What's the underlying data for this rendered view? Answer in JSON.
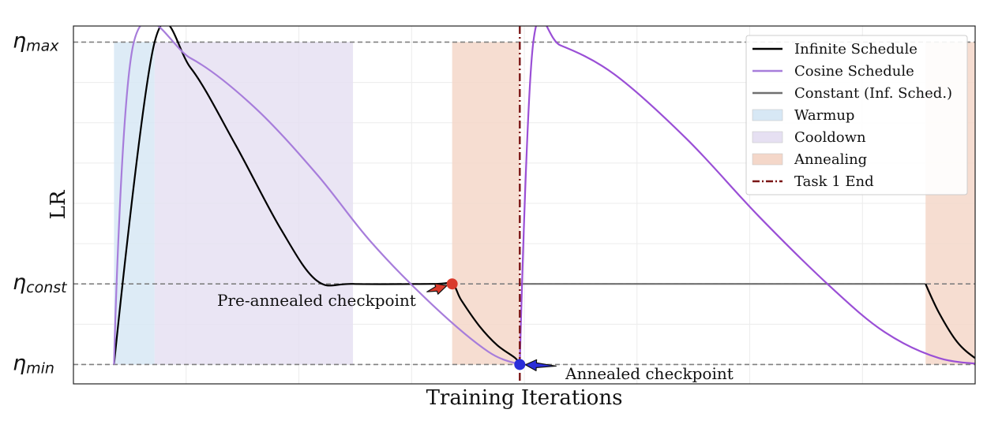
{
  "chart_data": {
    "type": "line",
    "xlabel": "Training Iterations",
    "ylabel": "LR",
    "xlim": [
      0,
      1000
    ],
    "ylim": [
      -0.06,
      1.05
    ],
    "grid": true,
    "legend_position": "top-right",
    "yticks": [
      {
        "value": 1.0,
        "base": "η",
        "sub": "max"
      },
      {
        "value": 0.25,
        "base": "η",
        "sub": "const"
      },
      {
        "value": 0.0,
        "base": "η",
        "sub": "min"
      }
    ],
    "series": [
      {
        "name": "Infinite Schedule",
        "color": "#000000",
        "style": "solid",
        "points": [
          [
            45,
            0
          ],
          [
            90,
            1
          ],
          [
            130,
            0.92
          ],
          [
            180,
            0.68
          ],
          [
            230,
            0.42
          ],
          [
            270,
            0.26
          ],
          [
            310,
            0.25
          ],
          [
            400,
            0.25
          ],
          [
            420,
            0.25
          ],
          [
            430,
            0.2
          ],
          [
            450,
            0.12
          ],
          [
            470,
            0.06
          ],
          [
            490,
            0.02
          ],
          [
            495,
            0
          ]
        ]
      },
      {
        "name": "Cosine Schedule",
        "color": "#a77ddb",
        "style": "solid",
        "points": [
          [
            45,
            0
          ],
          [
            67,
            1
          ],
          [
            130,
            0.95
          ],
          [
            200,
            0.8
          ],
          [
            270,
            0.59
          ],
          [
            330,
            0.38
          ],
          [
            400,
            0.18
          ],
          [
            460,
            0.04
          ],
          [
            495,
            0
          ]
        ]
      },
      {
        "name": "Constant (Inf. Sched.)",
        "color": "#707070",
        "style": "solid",
        "points": [
          [
            495,
            0.25
          ],
          [
            945,
            0.25
          ]
        ]
      },
      {
        "name": "Infinite Schedule",
        "color": "#000000",
        "style": "solid",
        "points": [
          [
            945,
            0.25
          ],
          [
            960,
            0.16
          ],
          [
            980,
            0.07
          ],
          [
            1000,
            0.02
          ],
          [
            1015,
            0
          ]
        ]
      },
      {
        "name": "Cosine Schedule",
        "color": "#9a4fd6",
        "style": "solid",
        "points": [
          [
            495,
            0
          ],
          [
            510,
            1
          ],
          [
            540,
            0.99
          ],
          [
            600,
            0.9
          ],
          [
            680,
            0.7
          ],
          [
            760,
            0.46
          ],
          [
            840,
            0.24
          ],
          [
            900,
            0.1
          ],
          [
            960,
            0.02
          ],
          [
            1015,
            0
          ]
        ]
      }
    ],
    "shaded_regions": [
      {
        "name": "Warmup",
        "color": "#d7e8f5",
        "x": [
          45,
          90
        ],
        "y": [
          0,
          1
        ]
      },
      {
        "name": "Cooldown",
        "color": "#e6e0f2",
        "x": [
          90,
          310
        ],
        "y": [
          0,
          1
        ]
      },
      {
        "name": "Annealing",
        "color": "#f4d7c9",
        "x": [
          420,
          495
        ],
        "y": [
          0,
          1
        ]
      },
      {
        "name": "Annealing",
        "color": "#f4d7c9",
        "x": [
          945,
          1015
        ],
        "y": [
          0,
          1
        ]
      }
    ],
    "hlines": [
      {
        "y": 1.0,
        "style": "dashed",
        "color": "#808080"
      },
      {
        "y": 0.25,
        "style": "dashed",
        "color": "#808080"
      },
      {
        "y": 0.0,
        "style": "dashed",
        "color": "#808080"
      }
    ],
    "vlines": [
      {
        "name": "Task 1 End",
        "x": 495,
        "color": "#7a1515",
        "style": "dashdot"
      }
    ],
    "markers": [
      {
        "name": "Pre-annealed checkpoint",
        "x": 420,
        "y": 0.25,
        "color": "#d93a2b",
        "arrow_color": "#d93a2b"
      },
      {
        "name": "Annealed checkpoint",
        "x": 495,
        "y": 0.0,
        "color": "#2b2ed9",
        "arrow_color": "#2b2ed9"
      }
    ],
    "annotations": [
      {
        "text": "Pre-annealed checkpoint",
        "target": "Pre-annealed checkpoint"
      },
      {
        "text": "Annealed checkpoint",
        "target": "Annealed checkpoint"
      }
    ],
    "legend": [
      {
        "label": "Infinite Schedule",
        "kind": "line",
        "color": "#000000"
      },
      {
        "label": "Cosine Schedule",
        "kind": "line",
        "color": "#a77ddb"
      },
      {
        "label": "Constant (Inf. Sched.)",
        "kind": "line",
        "color": "#707070"
      },
      {
        "label": "Warmup",
        "kind": "patch",
        "color": "#d7e8f5"
      },
      {
        "label": "Cooldown",
        "kind": "patch",
        "color": "#e6e0f2"
      },
      {
        "label": "Annealing",
        "kind": "patch",
        "color": "#f4d7c9"
      },
      {
        "label": "Task 1 End",
        "kind": "dashdot",
        "color": "#7a1515"
      }
    ]
  }
}
